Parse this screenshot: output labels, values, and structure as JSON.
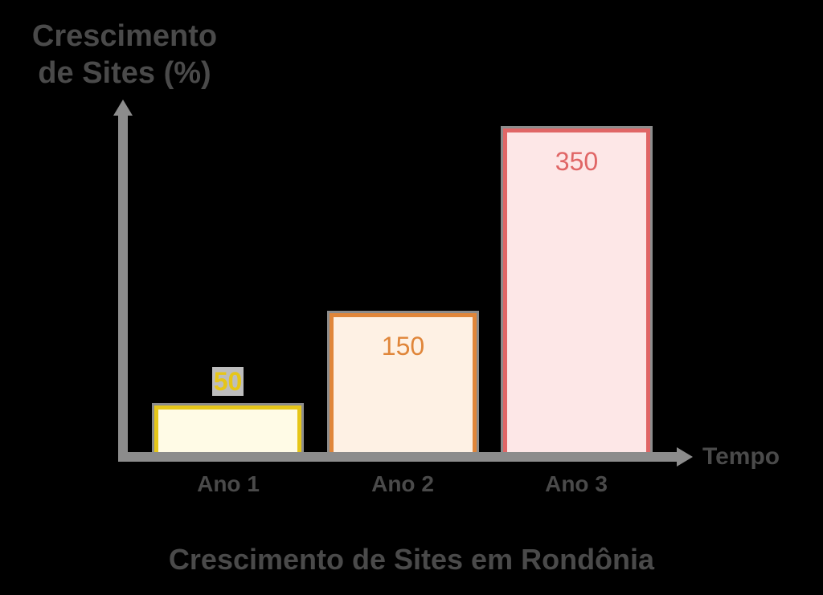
{
  "chart_data": {
    "type": "bar",
    "title": "Crescimento de Sites em Rondônia",
    "ylabel": "Crescimento de Sites (%)",
    "xlabel": "Tempo",
    "categories": [
      "Ano 1",
      "Ano 2",
      "Ano 3"
    ],
    "values": [
      50,
      150,
      350
    ],
    "value_labels": [
      "50",
      "150",
      "350"
    ],
    "colors": {
      "border": [
        "#e6c619",
        "#e0863a",
        "#e06666"
      ],
      "fill": [
        "#fffbe6",
        "#fef1e4",
        "#fde7e7"
      ],
      "axis": "#8c8c8c",
      "text": "#4a4a4a",
      "background": "#000000"
    },
    "ylim": [
      0,
      370
    ],
    "grid": false,
    "legend": "none",
    "ticks_shown": false
  },
  "labels": {
    "y_axis_title": "Crescimento de Sites (%)",
    "x_axis_title": "Tempo",
    "caption": "Crescimento de Sites em Rondônia"
  }
}
